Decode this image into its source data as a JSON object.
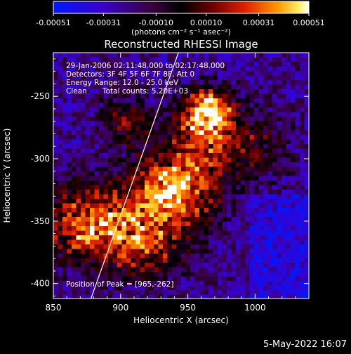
{
  "chart_data": {
    "type": "heatmap",
    "title": "Reconstructed RHESSI Image",
    "xlabel": "Heliocentric X (arcsec)",
    "ylabel": "Heliocentric Y (arcsec)",
    "xlim": [
      850,
      1040
    ],
    "ylim": [
      -412,
      -215
    ],
    "x_ticks": [
      850,
      900,
      950,
      1000
    ],
    "y_ticks": [
      -250,
      -300,
      -350,
      -400
    ],
    "colorbar": {
      "ticks": [
        "-0.00051",
        "-0.00031",
        "-0.00010",
        "0.00010",
        "0.00031",
        "0.00051"
      ],
      "unit_label": "(photons cm⁻² s⁻¹ asec⁻²)",
      "range": [
        -0.00051,
        0.00051
      ]
    },
    "annotations": {
      "time_range": "29-Jan-2006 02:11:48.000 to 02:17:48.000",
      "detectors": "Detectors: 3F 4F 5F 6F 7F 8F, Att 0",
      "energy_range": "Energy Range: 12.0 - 25.0 keV",
      "method": "Clean",
      "total_counts": "Total counts: 5.20E+03",
      "peak": "Position of Peak = [965,-262]"
    },
    "peak": [
      965,
      -262
    ],
    "grid": false,
    "limb_line": {
      "x_top": 943,
      "x_bottom": 878
    }
  },
  "footer": {
    "date": "5-May-2022 16:07"
  }
}
